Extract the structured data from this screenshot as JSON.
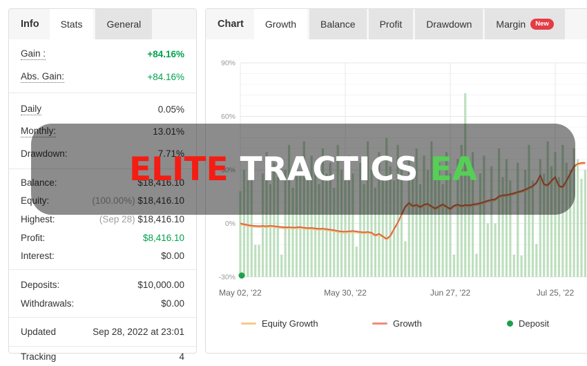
{
  "left_panel": {
    "title": "Info",
    "tabs": [
      {
        "label": "Stats",
        "active": true
      },
      {
        "label": "General",
        "active": false
      }
    ],
    "groups": [
      [
        {
          "label": "Gain :",
          "value": "+84.16%",
          "vclass": "green bold",
          "dotted": true
        },
        {
          "label": "Abs. Gain:",
          "value": "+84.16%",
          "vclass": "green",
          "dotted": true
        }
      ],
      [
        {
          "label": "Daily",
          "value": "0.05%",
          "dotted": true
        },
        {
          "label": "Monthly:",
          "value": "13.01%",
          "dotted": true
        },
        {
          "label": "Drawdown:",
          "value": "7.71%"
        }
      ],
      [
        {
          "label": "Balance:",
          "value": "$18,416.10"
        },
        {
          "label": "Equity:",
          "prefix": "(100.00%) ",
          "value": "$18,416.10"
        },
        {
          "label": "Highest:",
          "prefix": "(Sep 28) ",
          "value": "$18,416.10"
        },
        {
          "label": "Profit:",
          "value": "$8,416.10",
          "vclass": "green"
        },
        {
          "label": "Interest:",
          "value": "$0.00"
        }
      ],
      [
        {
          "label": "Deposits:",
          "value": "$10,000.00"
        },
        {
          "label": "Withdrawals:",
          "value": "$0.00"
        }
      ],
      [
        {
          "label": "Updated",
          "value": "Sep 28, 2022 at 23:01"
        }
      ],
      [
        {
          "label": "Tracking",
          "value": "4"
        }
      ]
    ]
  },
  "right_panel": {
    "title": "Chart",
    "tabs": [
      {
        "label": "Growth",
        "active": true
      },
      {
        "label": "Balance",
        "active": false
      },
      {
        "label": "Profit",
        "active": false
      },
      {
        "label": "Drawdown",
        "active": false
      },
      {
        "label": "Margin",
        "active": false,
        "badge": "New"
      }
    ]
  },
  "watermark": {
    "part1": "ELITE",
    "part2": "TRACTICS",
    "part3": "EA",
    "colors": {
      "part1": "#f31d13",
      "part2": "#ffffff",
      "part3": "#55cf55"
    }
  },
  "chart_data": {
    "type": "bar",
    "title": "Growth chart (daily bars with growth lines)",
    "ylim": [
      -30,
      90
    ],
    "y_ticks": [
      {
        "v": 90,
        "label": "90%"
      },
      {
        "v": 60,
        "label": "60%"
      },
      {
        "v": 30,
        "label": "30%"
      },
      {
        "v": 0,
        "label": "0%"
      },
      {
        "v": -30,
        "label": "-30%"
      }
    ],
    "x_ticks": [
      {
        "day": 0,
        "label": "May 02, '22"
      },
      {
        "day": 28,
        "label": "May 30, '22"
      },
      {
        "day": 56,
        "label": "Jun 27, '22"
      },
      {
        "day": 84,
        "label": "Jul 25, '22"
      }
    ],
    "grid": {
      "minor_step_pct": 6,
      "major_color": "#e7e7e7",
      "minor_color": "#f4f4f4"
    },
    "bar_color": "#b2d9b3",
    "bar_values": [
      18,
      30,
      24,
      36,
      -12,
      -12,
      28,
      40,
      22,
      34,
      26,
      -17.5,
      30,
      44,
      20,
      36,
      28,
      46,
      24,
      38,
      30,
      22,
      42,
      28,
      34,
      20,
      44,
      30,
      24,
      38,
      28,
      -13,
      34,
      22,
      46,
      30,
      20,
      40,
      26,
      48,
      32,
      24,
      44,
      30,
      -10,
      36,
      26,
      42,
      22,
      38,
      30,
      46,
      26,
      34,
      22,
      40,
      28,
      -17.5,
      36,
      44,
      73,
      30,
      40,
      -17,
      28,
      38,
      0,
      32,
      0,
      42,
      26,
      36,
      24,
      -17.5,
      34,
      -18,
      30,
      44,
      24,
      -11.5,
      36,
      28,
      46,
      32,
      40,
      26,
      44,
      34,
      30,
      42,
      36,
      25,
      30
    ],
    "series": [
      {
        "name": "Equity Growth",
        "color": "#f2c078"
      },
      {
        "name": "Growth",
        "color": "#dc5f41",
        "values": [
          0,
          -0.5,
          -0.9,
          -1.2,
          -1.4,
          -1.5,
          -1.4,
          -1.6,
          -1.3,
          -1.5,
          -1.8,
          -2.0,
          -2.2,
          -2.1,
          -2.3,
          -2.2,
          -2.0,
          -2.4,
          -2.6,
          -2.5,
          -2.8,
          -3.0,
          -2.9,
          -3.2,
          -3.5,
          -3.8,
          -4.2,
          -4.5,
          -4.6,
          -4.4,
          -4.2,
          -4.5,
          -4.8,
          -5.0,
          -4.8,
          -5.2,
          -6.6,
          -5.8,
          -7.2,
          -8.6,
          -7.0,
          -3.0,
          0.5,
          5.0,
          9.5,
          11.5,
          9.8,
          10.5,
          9.2,
          10.6,
          11.0,
          9.6,
          8.4,
          9.6,
          10.8,
          9.4,
          8.2,
          10.0,
          10.6,
          9.8,
          10.4,
          10.2,
          10.6,
          11.0,
          11.4,
          12.0,
          12.8,
          13.2,
          13.6,
          15.2,
          15.8,
          16.0,
          16.4,
          17.0,
          17.6,
          18.2,
          19.0,
          20.0,
          21.0,
          23.0,
          27.0,
          22.0,
          21.5,
          24.0,
          26.0,
          21.0,
          20.5,
          24.0,
          28.0,
          32.0,
          33.5,
          34.0,
          34.0
        ]
      }
    ],
    "deposits": [
      {
        "day": 0,
        "at_baseline": true
      }
    ],
    "legend": [
      {
        "label": "Equity Growth",
        "color": "#f6c98c",
        "type": "line"
      },
      {
        "label": "Growth",
        "color": "#f08a7a",
        "type": "line"
      },
      {
        "label": "Deposit",
        "color": "#1fa04b",
        "type": "dot"
      }
    ]
  }
}
